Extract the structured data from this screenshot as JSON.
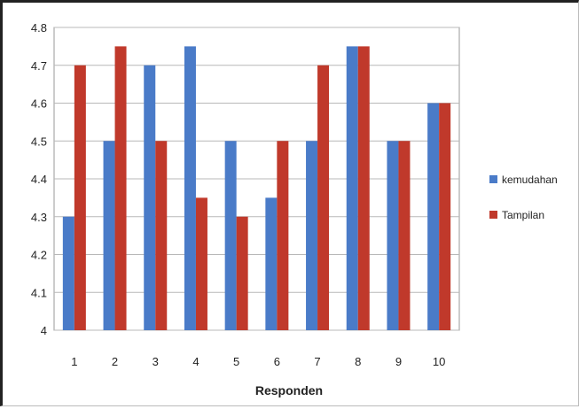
{
  "chart_data": {
    "type": "bar",
    "categories": [
      "1",
      "2",
      "3",
      "4",
      "5",
      "6",
      "7",
      "8",
      "9",
      "10"
    ],
    "series": [
      {
        "name": "kemudahan",
        "color": "#4a7bc8",
        "values": [
          4.3,
          4.5,
          4.7,
          4.75,
          4.5,
          4.35,
          4.5,
          4.75,
          4.5,
          4.6
        ]
      },
      {
        "name": "Tampilan",
        "color": "#c0392b",
        "values": [
          4.7,
          4.75,
          4.5,
          4.35,
          4.3,
          4.5,
          4.7,
          4.75,
          4.5,
          4.6
        ]
      }
    ],
    "title": "",
    "xlabel": "Responden",
    "ylabel": "",
    "ylim": [
      4,
      4.8
    ],
    "yticks": [
      "4",
      "4.1",
      "4.2",
      "4.3",
      "4.4",
      "4.5",
      "4.6",
      "4.7",
      "4.8"
    ],
    "grid": true,
    "legend_position": "right"
  }
}
